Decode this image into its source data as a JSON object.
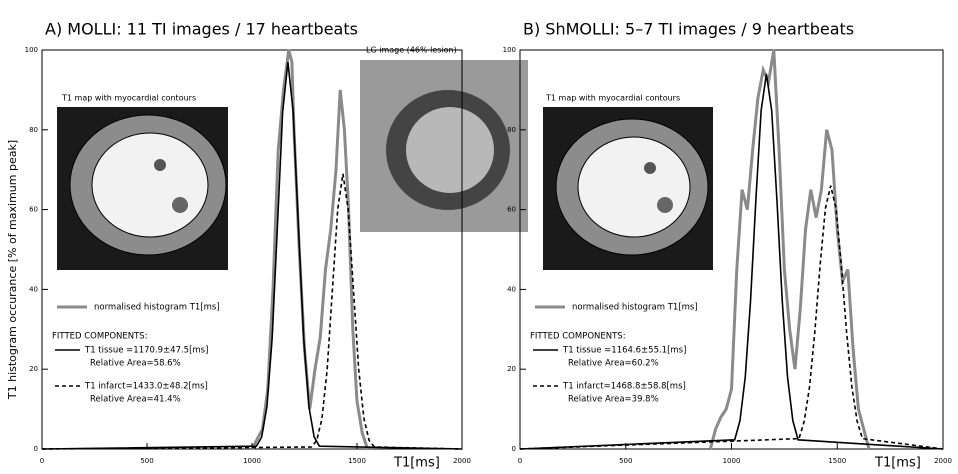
{
  "chart_data": [
    {
      "type": "line",
      "title": "A) MOLLI: 11 TI images / 17 heartbeats",
      "xlabel": "T1[ms]",
      "ylabel": "T1 histogram occurance [% of maximum peak]",
      "xlim": [
        0,
        2000
      ],
      "xticks": [
        0,
        500,
        1000,
        1500,
        2000
      ],
      "ylim": [
        0,
        100
      ],
      "yticks": [
        0,
        20,
        40,
        60,
        80,
        100
      ],
      "grid": false,
      "images": [
        {
          "caption": "T1 map with myocardial contours"
        },
        {
          "caption": "LG image (46% lesion)"
        }
      ],
      "legend_title": "FITTED COMPONENTS:",
      "series": [
        {
          "name": "normalised histogram T1[ms]",
          "color": "#8a8a8a",
          "style": "solid",
          "x": [
            1000,
            1050,
            1075,
            1100,
            1125,
            1150,
            1175,
            1190,
            1200,
            1225,
            1250,
            1275,
            1300,
            1325,
            1350,
            1375,
            1400,
            1420,
            1440,
            1460,
            1480,
            1500,
            1525,
            1550
          ],
          "values": [
            0,
            5,
            15,
            40,
            75,
            90,
            100,
            97,
            80,
            50,
            25,
            10,
            20,
            28,
            45,
            55,
            70,
            90,
            80,
            60,
            30,
            12,
            4,
            0
          ]
        },
        {
          "name": "T1 tissue =1170.9±47.5[ms]",
          "area_label": "Relative Area=58.6%",
          "color": "#000000",
          "style": "solid",
          "x": [
            0,
            1021,
            1046,
            1071,
            1096,
            1121,
            1146,
            1171,
            1196,
            1221,
            1246,
            1271,
            1296,
            1321,
            2000
          ],
          "values": [
            0,
            0.7,
            3,
            10.6,
            27.8,
            55.8,
            84.5,
            97,
            84.5,
            55.8,
            27.8,
            10.6,
            3,
            0.7,
            0
          ]
        },
        {
          "name": "T1 infarct=1433.0±48.2[ms]",
          "area_label": "Relative Area=41.4%",
          "color": "#000000",
          "style": "dashed",
          "x": [
            0,
            1283,
            1308,
            1333,
            1358,
            1383,
            1408,
            1433,
            1458,
            1483,
            1508,
            1533,
            1558,
            1583,
            2000
          ],
          "values": [
            0,
            0.5,
            2.1,
            7.6,
            20,
            40,
            60,
            69,
            60,
            40,
            20,
            7.6,
            2.1,
            0.5,
            0
          ]
        }
      ]
    },
    {
      "type": "line",
      "title": "B) ShMOLLI: 5–7 TI images / 9 heartbeats",
      "xlabel": "T1[ms]",
      "xlim": [
        0,
        2000
      ],
      "xticks": [
        0,
        500,
        1000,
        1500,
        2000
      ],
      "ylim": [
        0,
        100
      ],
      "yticks": [
        0,
        20,
        40,
        60,
        80,
        100
      ],
      "grid": false,
      "images": [
        {
          "caption": "T1 map with myocardial contours"
        }
      ],
      "legend_title": "FITTED COMPONENTS:",
      "series": [
        {
          "name": "normalised histogram T1[ms]",
          "color": "#8a8a8a",
          "style": "solid",
          "x": [
            900,
            925,
            950,
            975,
            1000,
            1025,
            1050,
            1075,
            1100,
            1125,
            1150,
            1175,
            1200,
            1225,
            1250,
            1275,
            1300,
            1325,
            1350,
            1375,
            1400,
            1425,
            1450,
            1475,
            1500,
            1525,
            1550,
            1575,
            1600,
            1625,
            1650
          ],
          "values": [
            0,
            5,
            8,
            10,
            15,
            45,
            65,
            60,
            75,
            88,
            95,
            92,
            100,
            75,
            45,
            30,
            20,
            35,
            55,
            65,
            58,
            65,
            80,
            75,
            55,
            42,
            45,
            25,
            10,
            5,
            0
          ]
        },
        {
          "name": "T1 tissue =1164.6±55.1[ms]",
          "area_label": "Relative Area=60.2%",
          "color": "#000000",
          "style": "solid",
          "x": [
            0,
            1015,
            1040,
            1065,
            1090,
            1115,
            1140,
            1165,
            1190,
            1215,
            1240,
            1265,
            1290,
            1315,
            2000
          ],
          "values": [
            0,
            2.3,
            7.1,
            18,
            37.1,
            62.2,
            84.8,
            94,
            84.8,
            62.2,
            37.1,
            18,
            7.1,
            2.3,
            0
          ]
        },
        {
          "name": "T1 infarct=1468.8±58.8[ms]",
          "area_label": "Relative Area=39.8%",
          "color": "#000000",
          "style": "dashed",
          "x": [
            0,
            1319,
            1344,
            1369,
            1394,
            1419,
            1444,
            1469,
            1494,
            1519,
            1544,
            1569,
            1594,
            1619,
            2000
          ],
          "values": [
            0,
            2.6,
            7,
            15.6,
            29.4,
            46.1,
            60.3,
            66,
            60.3,
            46.1,
            29.4,
            15.6,
            7,
            2.6,
            0
          ]
        }
      ]
    }
  ]
}
